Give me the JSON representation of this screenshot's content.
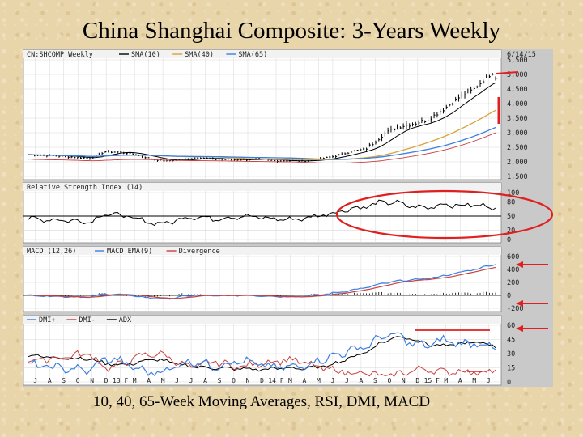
{
  "slide": {
    "title": "China Shanghai Composite: 3-Years Weekly",
    "caption": "10, 40, 65-Week Moving Averages, RSI, DMI, MACD"
  },
  "colors": {
    "price_bar": "#000000",
    "sma10": "#000000",
    "sma40": "#d8a23c",
    "sma65": "#3a7fe0",
    "sma_ext": "#c84040",
    "rsi": "#000000",
    "macd": "#3a7fe0",
    "macd_ema": "#c84040",
    "divergence": "#000000",
    "dmi_plus": "#3a7fe0",
    "dmi_minus": "#c84040",
    "adx": "#000000",
    "annotation": "#e02020",
    "panel_bg": "#ffffff",
    "grid": "#d8d8d8"
  },
  "chart_data": [
    {
      "type": "line",
      "panel": "price",
      "header": "CN:SHCOMP Weekly",
      "date_label": "6/14/15",
      "legend": [
        "SMA(10)",
        "SMA(40)",
        "SMA(65)"
      ],
      "ylim": [
        1500,
        5500
      ],
      "y_ticks": [
        1500,
        2000,
        2500,
        3000,
        3500,
        4000,
        4500,
        5000,
        5500
      ],
      "y_tick_labels": [
        "1,500",
        "2,000",
        "2,500",
        "3,000",
        "3,500",
        "4,000",
        "4,500",
        "5,000",
        "5,500"
      ],
      "x_months": [
        "J",
        "A",
        "S",
        "O",
        "N",
        "D",
        "13 F",
        "M",
        "A",
        "M",
        "J",
        "J",
        "A",
        "S",
        "O",
        "N",
        "D",
        "14 F",
        "M",
        "A",
        "M",
        "J",
        "J",
        "A",
        "S",
        "O",
        "N",
        "D",
        "15 F",
        "M",
        "A",
        "M",
        "J"
      ],
      "anchor_close": [
        [
          0,
          2250
        ],
        [
          10,
          2200
        ],
        [
          20,
          2120
        ],
        [
          25,
          2350
        ],
        [
          30,
          2330
        ],
        [
          35,
          2250
        ],
        [
          40,
          2100
        ],
        [
          45,
          2030
        ],
        [
          50,
          2080
        ],
        [
          55,
          2150
        ],
        [
          60,
          2100
        ],
        [
          65,
          2080
        ],
        [
          70,
          2070
        ],
        [
          75,
          2090
        ],
        [
          80,
          2040
        ],
        [
          85,
          2040
        ],
        [
          90,
          2030
        ],
        [
          95,
          2100
        ],
        [
          100,
          2200
        ],
        [
          105,
          2350
        ],
        [
          110,
          2450
        ],
        [
          115,
          2900
        ],
        [
          120,
          3200
        ],
        [
          125,
          3300
        ],
        [
          130,
          3450
        ],
        [
          135,
          3800
        ],
        [
          140,
          4200
        ],
        [
          145,
          4500
        ],
        [
          148,
          4800
        ],
        [
          151,
          5060
        ],
        [
          152,
          4900
        ]
      ]
    },
    {
      "type": "line",
      "panel": "rsi",
      "header": "Relative Strength Index (14)",
      "ylim": [
        0,
        100
      ],
      "y_ticks": [
        0,
        20,
        50,
        80,
        100
      ],
      "reference_line": 50,
      "anchor": [
        [
          0,
          44
        ],
        [
          10,
          42
        ],
        [
          20,
          38
        ],
        [
          25,
          55
        ],
        [
          30,
          52
        ],
        [
          35,
          44
        ],
        [
          40,
          36
        ],
        [
          45,
          34
        ],
        [
          50,
          46
        ],
        [
          55,
          49
        ],
        [
          60,
          44
        ],
        [
          65,
          47
        ],
        [
          70,
          50
        ],
        [
          75,
          47
        ],
        [
          80,
          44
        ],
        [
          85,
          43
        ],
        [
          90,
          45
        ],
        [
          95,
          52
        ],
        [
          100,
          58
        ],
        [
          105,
          66
        ],
        [
          110,
          70
        ],
        [
          115,
          80
        ],
        [
          120,
          78
        ],
        [
          125,
          70
        ],
        [
          130,
          68
        ],
        [
          135,
          76
        ],
        [
          140,
          72
        ],
        [
          145,
          74
        ],
        [
          150,
          70
        ],
        [
          152,
          68
        ]
      ]
    },
    {
      "type": "line",
      "panel": "macd",
      "header": "MACD (12,26)",
      "legend": [
        "MACD EMA(9)",
        "Divergence"
      ],
      "ylim": [
        -200,
        600
      ],
      "y_ticks": [
        -200,
        0,
        200,
        400,
        600
      ],
      "y_tick_labels": [
        "-200",
        "0",
        "200",
        "400",
        "600"
      ],
      "macd_anchor": [
        [
          0,
          0
        ],
        [
          10,
          -15
        ],
        [
          20,
          -30
        ],
        [
          25,
          25
        ],
        [
          30,
          10
        ],
        [
          35,
          -15
        ],
        [
          40,
          -40
        ],
        [
          45,
          -55
        ],
        [
          50,
          -20
        ],
        [
          55,
          5
        ],
        [
          60,
          -10
        ],
        [
          65,
          -5
        ],
        [
          70,
          5
        ],
        [
          75,
          -5
        ],
        [
          80,
          -15
        ],
        [
          85,
          -20
        ],
        [
          90,
          -15
        ],
        [
          95,
          10
        ],
        [
          100,
          40
        ],
        [
          105,
          80
        ],
        [
          110,
          120
        ],
        [
          115,
          180
        ],
        [
          120,
          220
        ],
        [
          125,
          240
        ],
        [
          130,
          260
        ],
        [
          135,
          300
        ],
        [
          140,
          350
        ],
        [
          145,
          400
        ],
        [
          150,
          460
        ],
        [
          152,
          480
        ]
      ]
    },
    {
      "type": "line",
      "panel": "dmi",
      "header": "DMI",
      "legend": [
        "DMI+",
        "DMI-",
        "ADX"
      ],
      "ylim": [
        0,
        60
      ],
      "y_ticks": [
        0,
        15,
        30,
        45,
        60
      ],
      "plus_anchor": [
        [
          0,
          18
        ],
        [
          10,
          15
        ],
        [
          20,
          12
        ],
        [
          25,
          25
        ],
        [
          30,
          22
        ],
        [
          35,
          14
        ],
        [
          40,
          10
        ],
        [
          45,
          12
        ],
        [
          50,
          20
        ],
        [
          55,
          22
        ],
        [
          60,
          16
        ],
        [
          65,
          20
        ],
        [
          70,
          22
        ],
        [
          75,
          18
        ],
        [
          80,
          16
        ],
        [
          85,
          15
        ],
        [
          90,
          18
        ],
        [
          95,
          24
        ],
        [
          100,
          28
        ],
        [
          105,
          34
        ],
        [
          110,
          38
        ],
        [
          115,
          48
        ],
        [
          120,
          50
        ],
        [
          125,
          40
        ],
        [
          130,
          38
        ],
        [
          135,
          45
        ],
        [
          140,
          40
        ],
        [
          145,
          42
        ],
        [
          150,
          38
        ],
        [
          152,
          36
        ]
      ],
      "minus_anchor": [
        [
          0,
          22
        ],
        [
          10,
          26
        ],
        [
          20,
          30
        ],
        [
          25,
          15
        ],
        [
          30,
          18
        ],
        [
          35,
          26
        ],
        [
          40,
          30
        ],
        [
          45,
          28
        ],
        [
          50,
          18
        ],
        [
          55,
          16
        ],
        [
          60,
          22
        ],
        [
          65,
          18
        ],
        [
          70,
          16
        ],
        [
          75,
          20
        ],
        [
          80,
          22
        ],
        [
          85,
          24
        ],
        [
          90,
          20
        ],
        [
          95,
          15
        ],
        [
          100,
          12
        ],
        [
          105,
          10
        ],
        [
          110,
          9
        ],
        [
          115,
          6
        ],
        [
          120,
          8
        ],
        [
          125,
          12
        ],
        [
          130,
          14
        ],
        [
          135,
          10
        ],
        [
          140,
          12
        ],
        [
          145,
          10
        ],
        [
          150,
          12
        ],
        [
          152,
          13
        ]
      ],
      "adx_anchor": [
        [
          0,
          28
        ],
        [
          10,
          26
        ],
        [
          20,
          24
        ],
        [
          25,
          20
        ],
        [
          30,
          18
        ],
        [
          35,
          20
        ],
        [
          40,
          24
        ],
        [
          45,
          22
        ],
        [
          50,
          18
        ],
        [
          55,
          16
        ],
        [
          60,
          15
        ],
        [
          65,
          14
        ],
        [
          70,
          14
        ],
        [
          75,
          13
        ],
        [
          80,
          14
        ],
        [
          85,
          15
        ],
        [
          90,
          14
        ],
        [
          95,
          16
        ],
        [
          100,
          20
        ],
        [
          105,
          26
        ],
        [
          110,
          32
        ],
        [
          115,
          42
        ],
        [
          120,
          48
        ],
        [
          125,
          46
        ],
        [
          130,
          40
        ],
        [
          135,
          38
        ],
        [
          140,
          40
        ],
        [
          145,
          42
        ],
        [
          150,
          40
        ],
        [
          152,
          38
        ]
      ]
    }
  ]
}
